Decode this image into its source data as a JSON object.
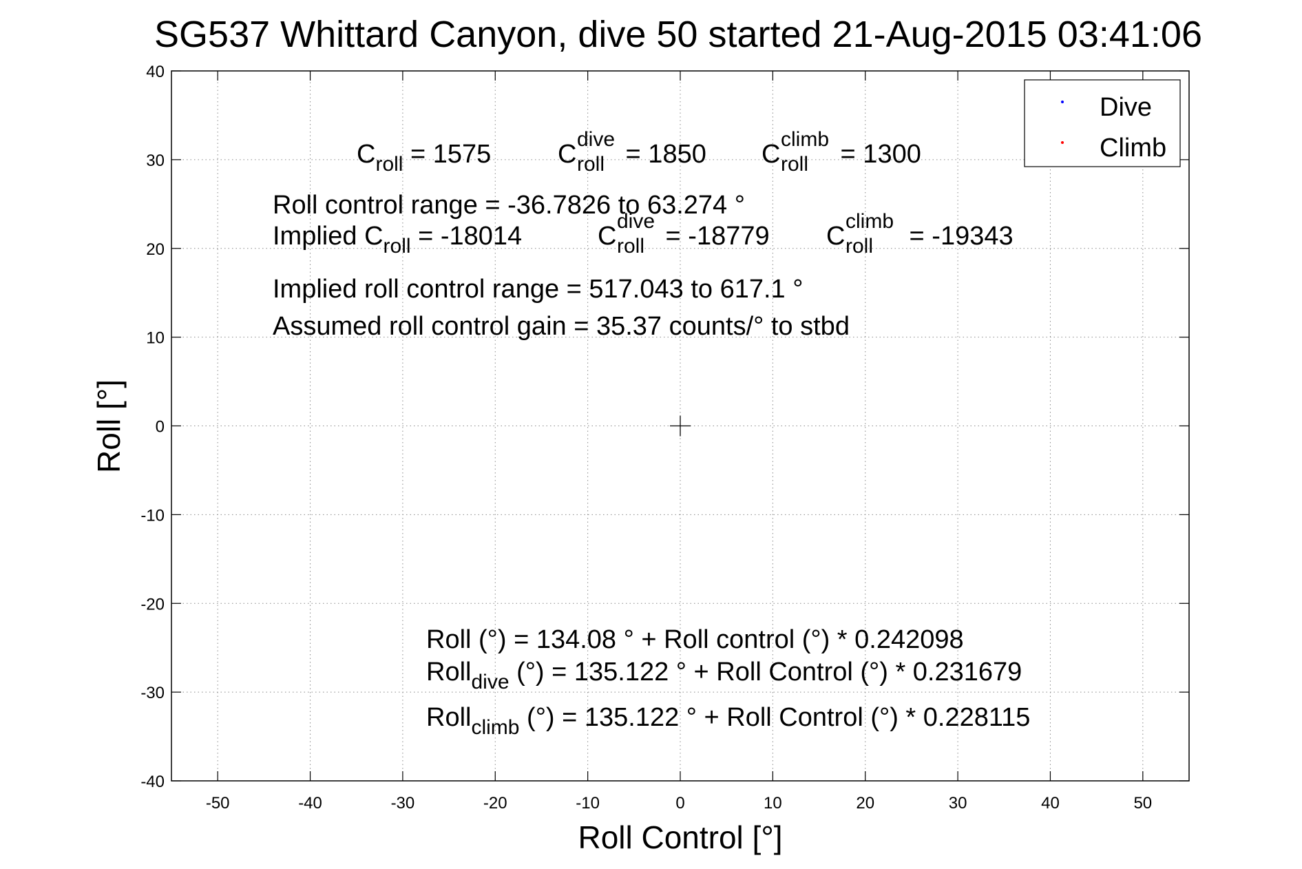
{
  "chart_data": {
    "type": "scatter",
    "title": "SG537 Whittard Canyon, dive 50 started 21-Aug-2015 03:41:06",
    "xlabel": "Roll Control [°]",
    "ylabel": "Roll [°]",
    "xlim": [
      -55,
      55
    ],
    "ylim": [
      -40,
      40
    ],
    "xticks": [
      -50,
      -40,
      -30,
      -20,
      -10,
      0,
      10,
      20,
      30,
      40,
      50
    ],
    "yticks": [
      -40,
      -30,
      -20,
      -10,
      0,
      10,
      20,
      30,
      40
    ],
    "grid": true,
    "legend_position": "top-right",
    "series": [
      {
        "name": "Dive",
        "color": "#0000ff",
        "points": []
      },
      {
        "name": "Climb",
        "color": "#ff0000",
        "points": []
      }
    ],
    "crosshair_marker": {
      "x": 0,
      "y": 0
    },
    "annotations": {
      "c_roll": {
        "base": "C",
        "sub": "roll",
        "value": " = 1575"
      },
      "c_roll_dive": {
        "base": "C",
        "sup": "dive",
        "sub": "roll",
        "value": " = 1850"
      },
      "c_roll_climb": {
        "base": "C",
        "sup": "climb",
        "sub": "roll",
        "value": " = 1300"
      },
      "roll_control_range": "Roll control range = -36.7826 to 63.274 °",
      "implied_prefix": "Implied ",
      "implied_c_roll": {
        "base": "C",
        "sub": "roll",
        "value": " = -18014"
      },
      "implied_c_roll_dive": {
        "base": "C",
        "sup": "dive",
        "sub": "roll",
        "value": " = -18779"
      },
      "implied_c_roll_climb": {
        "base": "C",
        "sup": "climb",
        "sub": "roll",
        "value": " = -19343"
      },
      "implied_range": "Implied roll control range = 517.043 to 617.1 °",
      "gain": "Assumed roll control gain = 35.37 counts/° to stbd",
      "fit_all": "Roll (°) = 134.08 ° + Roll control (°) * 0.242098",
      "fit_dive": {
        "base": "Roll",
        "sub": "dive",
        "rest": " (°) = 135.122 ° + Roll Control (°) * 0.231679"
      },
      "fit_climb": {
        "base": "Roll",
        "sub": "climb",
        "rest": " (°) = 135.122 ° + Roll Control (°) * 0.228115"
      }
    }
  }
}
